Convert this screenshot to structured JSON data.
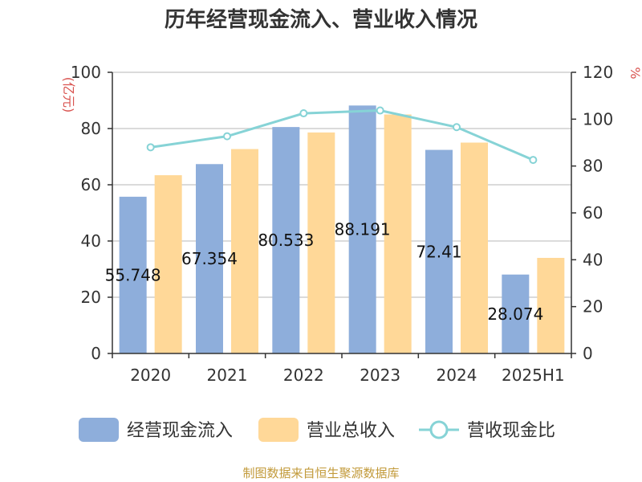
{
  "chart_data": {
    "type": "bar",
    "title": "历年经营现金流入、营业收入情况",
    "categories": [
      "2020",
      "2021",
      "2022",
      "2023",
      "2024",
      "2025H1"
    ],
    "y_left": {
      "label": "(亿元)",
      "ticks": [
        "0",
        "20",
        "40",
        "60",
        "80",
        "100"
      ],
      "ylim": [
        0,
        100
      ]
    },
    "y_right": {
      "label": "%",
      "ticks": [
        "0",
        "20",
        "40",
        "60",
        "80",
        "100",
        "120"
      ],
      "ylim": [
        0,
        120
      ]
    },
    "series": [
      {
        "name": "经营现金流入",
        "type": "bar",
        "axis": "left",
        "color": "#8eaedb",
        "values": [
          55.748,
          67.354,
          80.533,
          88.191,
          72.41,
          28.074
        ],
        "labels": [
          "55.748",
          "67.354",
          "80.533",
          "88.191",
          "72.41",
          "28.074"
        ]
      },
      {
        "name": "营业总收入",
        "type": "bar",
        "axis": "left",
        "color": "#ffd898",
        "values": [
          63.4,
          72.7,
          78.6,
          85.0,
          75.0,
          34.0
        ]
      },
      {
        "name": "营收现金比",
        "type": "line",
        "axis": "right",
        "color": "#86d3d6",
        "values": [
          88.0,
          92.7,
          102.5,
          103.7,
          96.6,
          82.6
        ]
      }
    ],
    "grid": true,
    "legend_position": "bottom"
  },
  "source": "制图数据来自恒生聚源数据库"
}
